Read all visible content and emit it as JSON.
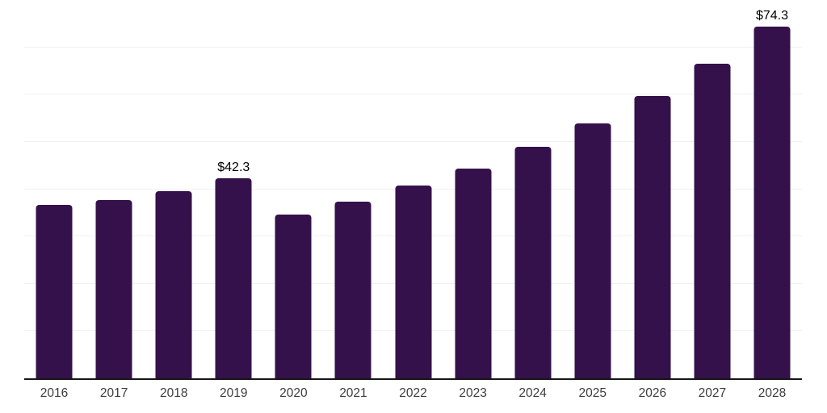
{
  "chart_data": {
    "type": "bar",
    "title": "",
    "xlabel": "",
    "ylabel": "",
    "categories": [
      "2016",
      "2017",
      "2018",
      "2019",
      "2020",
      "2021",
      "2022",
      "2023",
      "2024",
      "2025",
      "2026",
      "2027",
      "2028"
    ],
    "values": [
      36.6,
      37.7,
      39.6,
      42.3,
      34.7,
      37.3,
      40.8,
      44.3,
      48.9,
      53.9,
      59.7,
      66.6,
      74.3
    ],
    "data_labels": [
      "",
      "",
      "",
      "$42.3",
      "",
      "",
      "",
      "",
      "",
      "",
      "",
      "",
      "$74.3"
    ],
    "value_prefix": "$",
    "ylim": [
      0,
      80
    ],
    "gridline_interval": 10,
    "grid": true,
    "legend": "none",
    "y_tick_labels_visible": false
  },
  "colors": {
    "bar": "#35114B",
    "gridline": "#f1f1f4",
    "axis_line": "#161616",
    "tick_label": "#3d3d3d",
    "data_label": "#000000",
    "background": "#ffffff"
  }
}
